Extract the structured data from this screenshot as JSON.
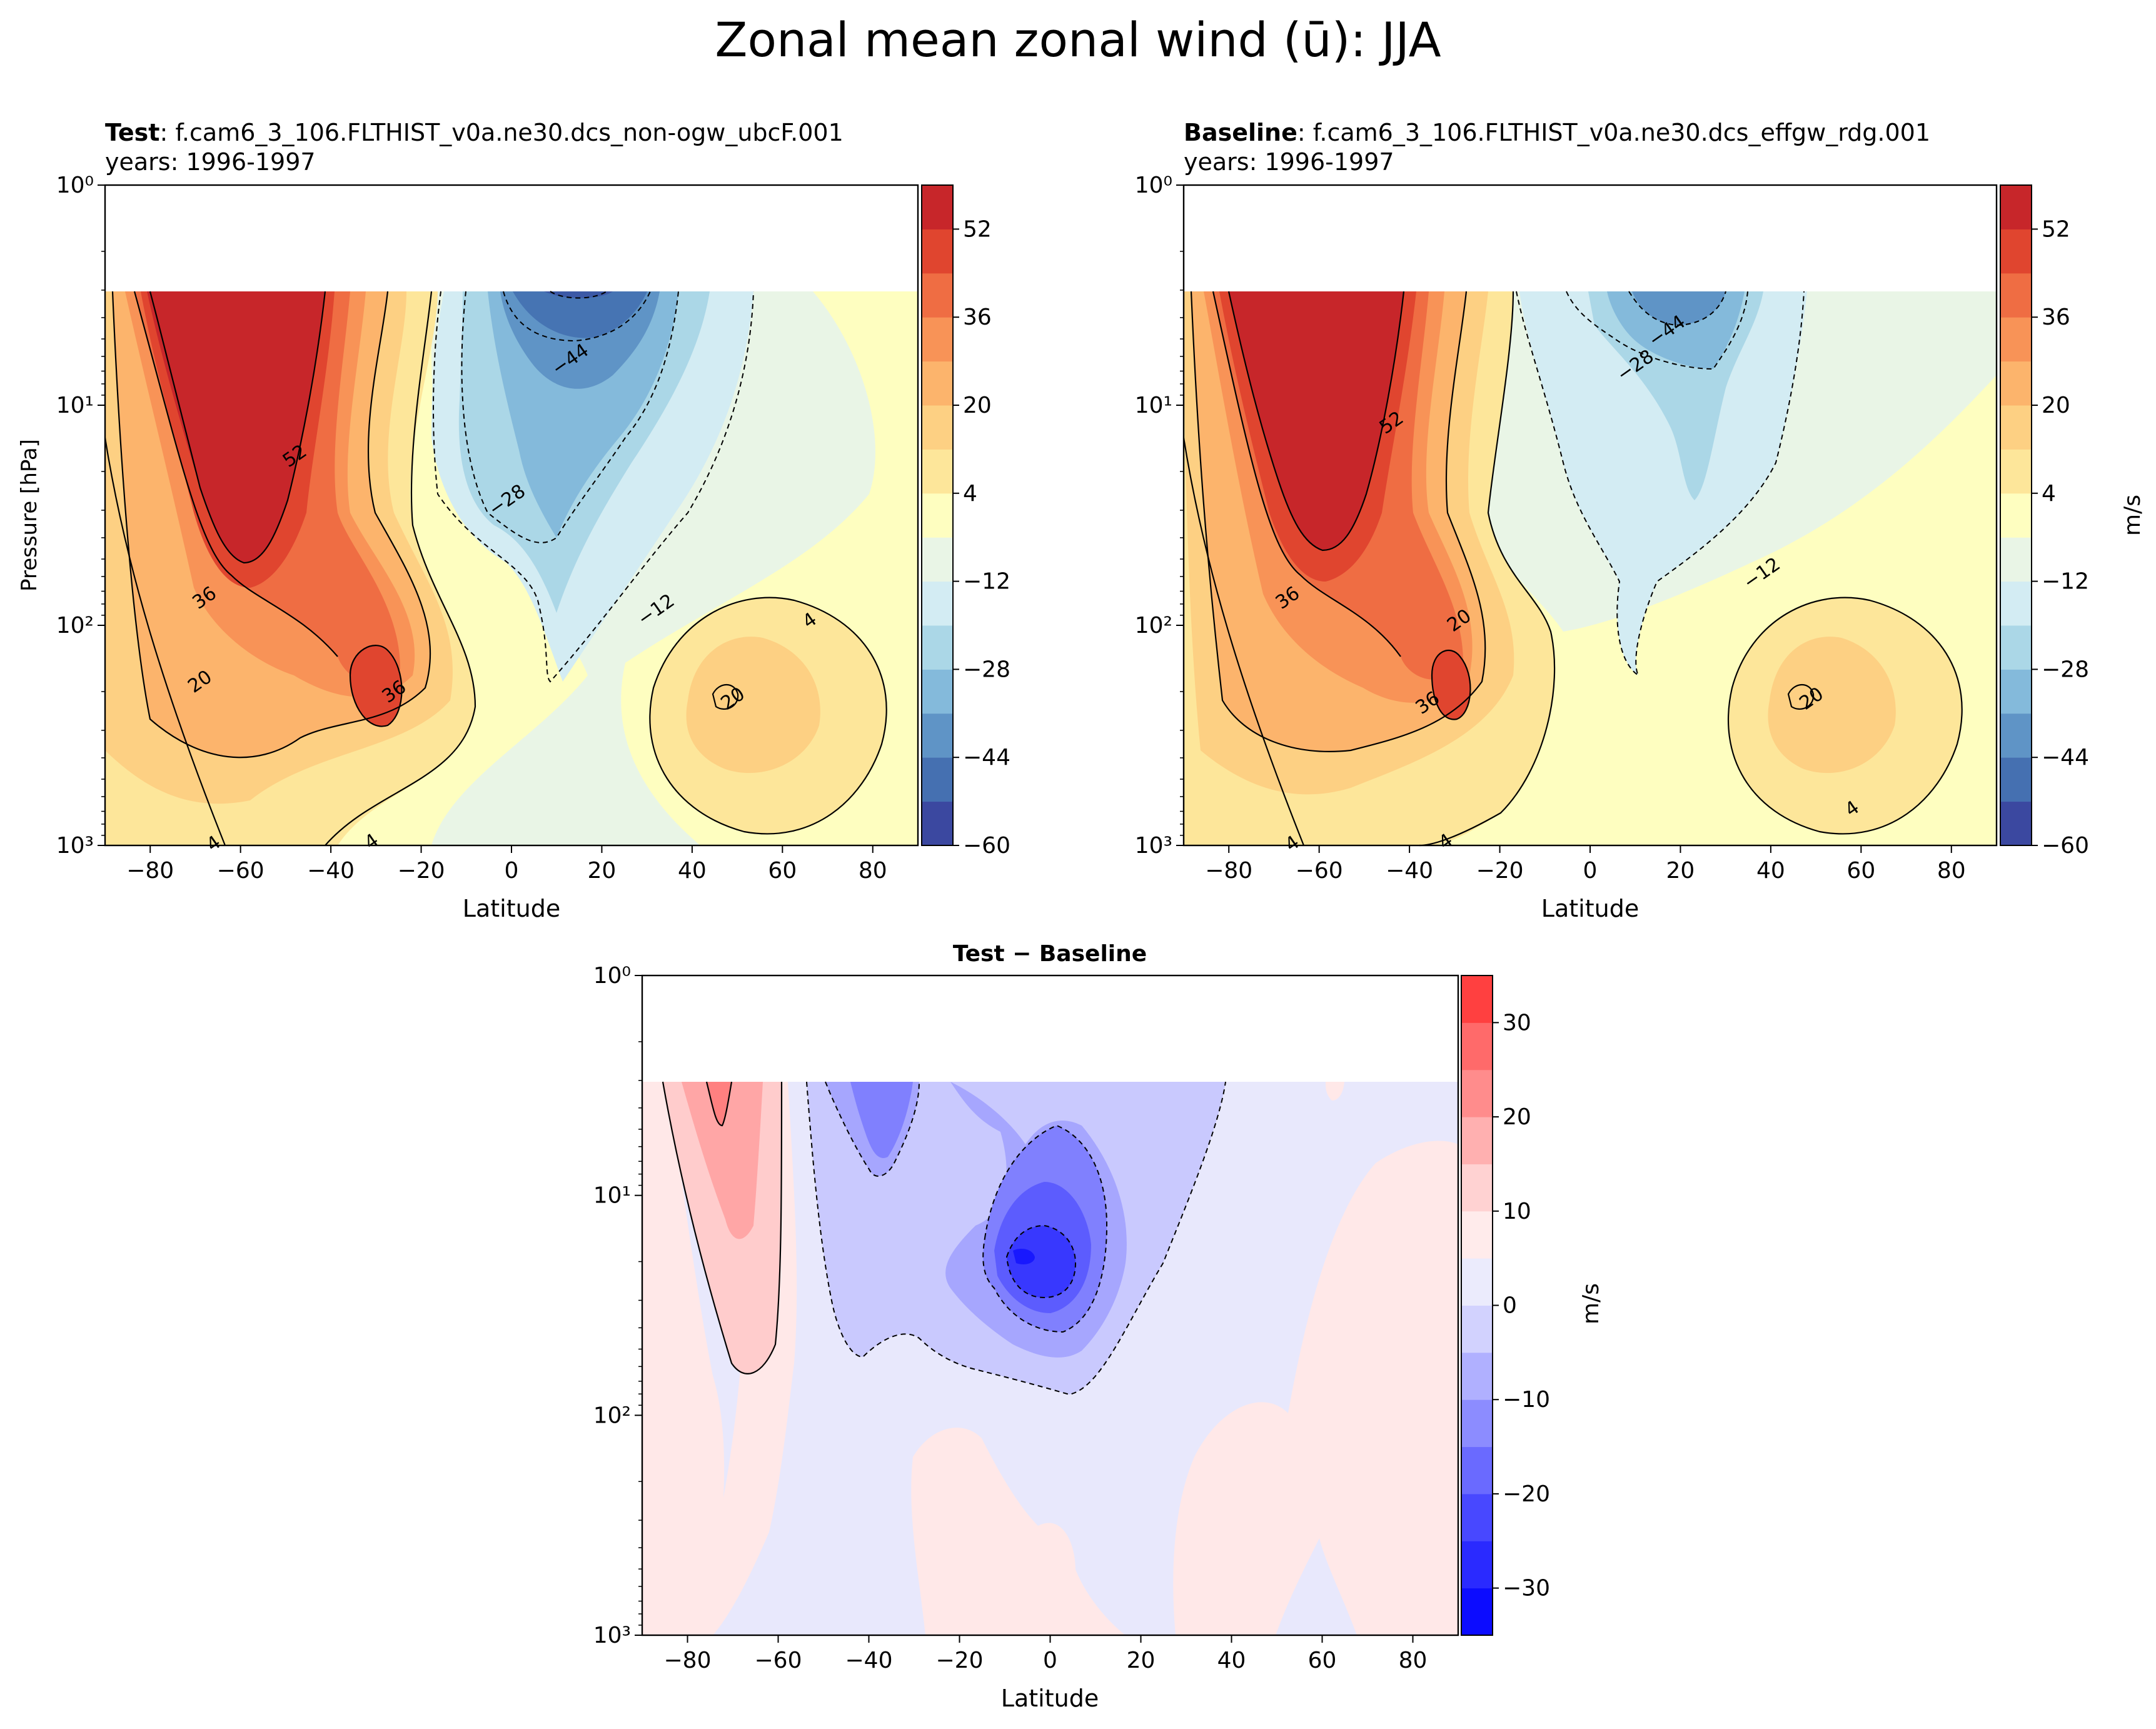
{
  "figure": {
    "title": "Zonal mean zonal wind (ū): JJA"
  },
  "chart_data": [
    {
      "type": "contour",
      "panel": "test",
      "label_bold": "Test",
      "label_rest": ": f.cam6_3_106.FLTHIST_v0a.ne30.dcs_non-ogw_ubcF.001",
      "years": "years: 1996-1997",
      "xlabel": "Latitude",
      "ylabel": "Pressure [hPa]",
      "xlim": [
        -90,
        90
      ],
      "ylim": [
        1000,
        1
      ],
      "yscale": "log",
      "data_top_hPa": 3,
      "xticks": [
        "−80",
        "−60",
        "−40",
        "−20",
        "0",
        "20",
        "40",
        "60",
        "80"
      ],
      "yticks": [
        "10⁰",
        "10¹",
        "10²",
        "10³"
      ],
      "levels": [
        -60,
        -52,
        -44,
        -36,
        -28,
        -20,
        -12,
        -4,
        4,
        12,
        20,
        28,
        36,
        44,
        52,
        60
      ],
      "colorbar_ticks": [
        "52",
        "36",
        "20",
        "4",
        "−12",
        "−28",
        "−44",
        "−60"
      ],
      "colorbar_label": "",
      "contour_labels": [
        {
          "text": "52",
          "lat": -48,
          "p": 17
        },
        {
          "text": "36",
          "lat": -68,
          "p": 75
        },
        {
          "text": "20",
          "lat": -69,
          "p": 180
        },
        {
          "text": "4",
          "lat": -66,
          "p": 980
        },
        {
          "text": "4",
          "lat": -31,
          "p": 960
        },
        {
          "text": "36",
          "lat": -26,
          "p": 200
        },
        {
          "text": "−28",
          "lat": -1,
          "p": 27
        },
        {
          "text": "−44",
          "lat": 13,
          "p": 6.2
        },
        {
          "text": "−12",
          "lat": 32,
          "p": 85
        },
        {
          "text": "4",
          "lat": 66,
          "p": 95
        },
        {
          "text": "20",
          "lat": 49,
          "p": 215
        }
      ]
    },
    {
      "type": "contour",
      "panel": "baseline",
      "label_bold": "Baseline",
      "label_rest": ": f.cam6_3_106.FLTHIST_v0a.ne30.dcs_effgw_rdg.001",
      "years": "years: 1996-1997",
      "xlabel": "Latitude",
      "ylabel": "",
      "xlim": [
        -90,
        90
      ],
      "ylim": [
        1000,
        1
      ],
      "yscale": "log",
      "data_top_hPa": 3,
      "xticks": [
        "−80",
        "−60",
        "−40",
        "−20",
        "0",
        "20",
        "40",
        "60",
        "80"
      ],
      "yticks": [
        "10⁰",
        "10¹",
        "10²",
        "10³"
      ],
      "levels": [
        -60,
        -52,
        -44,
        -36,
        -28,
        -20,
        -12,
        -4,
        4,
        12,
        20,
        28,
        36,
        44,
        52,
        60
      ],
      "colorbar_ticks": [
        "52",
        "36",
        "20",
        "4",
        "−12",
        "−28",
        "−44",
        "−60"
      ],
      "colorbar_label": "m/s",
      "contour_labels": [
        {
          "text": "52",
          "lat": -44,
          "p": 12
        },
        {
          "text": "36",
          "lat": -67,
          "p": 75
        },
        {
          "text": "20",
          "lat": -29,
          "p": 95
        },
        {
          "text": "36",
          "lat": -36,
          "p": 225
        },
        {
          "text": "4",
          "lat": -66,
          "p": 980
        },
        {
          "text": "4",
          "lat": -32,
          "p": 960
        },
        {
          "text": "−44",
          "lat": 17,
          "p": 4.6
        },
        {
          "text": "−28",
          "lat": 10,
          "p": 6.6
        },
        {
          "text": "−12",
          "lat": 38,
          "p": 58
        },
        {
          "text": "20",
          "lat": 49,
          "p": 215
        },
        {
          "text": "4",
          "lat": 58,
          "p": 680
        }
      ]
    },
    {
      "type": "contour",
      "panel": "difference",
      "title_bold": "Test − Baseline",
      "xlabel": "Latitude",
      "ylabel": "",
      "xlim": [
        -90,
        90
      ],
      "ylim": [
        1000,
        1
      ],
      "yscale": "log",
      "data_top_hPa": 3,
      "xticks": [
        "−80",
        "−60",
        "−40",
        "−20",
        "0",
        "20",
        "40",
        "60",
        "80"
      ],
      "yticks": [
        "10⁰",
        "10¹",
        "10²",
        "10³"
      ],
      "levels": [
        -35,
        -30,
        -25,
        -20,
        -15,
        -10,
        -5,
        0,
        5,
        10,
        15,
        20,
        25,
        30,
        35
      ],
      "colorbar_ticks": [
        "30",
        "20",
        "10",
        "0",
        "−10",
        "−20",
        "−30"
      ],
      "colorbar_label": "m/s"
    }
  ]
}
